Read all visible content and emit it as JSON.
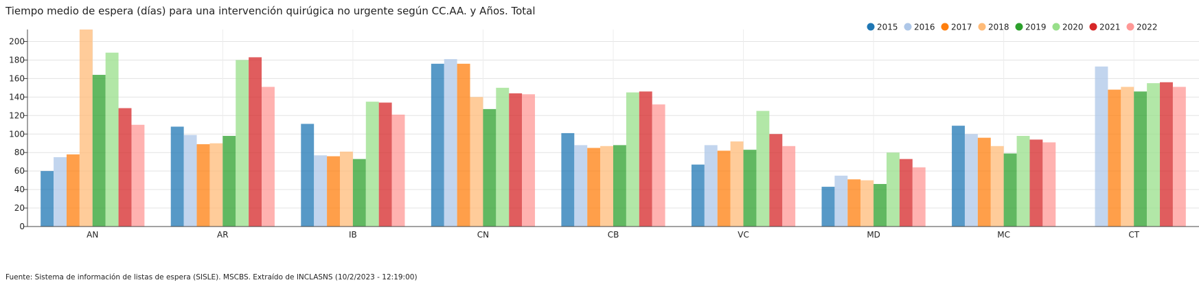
{
  "title": "Tiempo medio de espera (días) para una intervención quirúgica no urgente según CC.AA. y Años. Total",
  "source": "Fuente: Sistema de información de listas de espera (SISLE). MSCBS. Extraído de INCLASNS (10/2/2023 - 12:19:00)",
  "chart_data": {
    "type": "bar",
    "title": "Tiempo medio de espera (días) para una intervención quirúgica no urgente según CC.AA. y Años. Total",
    "xlabel": "",
    "ylabel": "",
    "ylim": [
      0,
      213
    ],
    "yticks": [
      0,
      20,
      40,
      60,
      80,
      100,
      120,
      140,
      160,
      180,
      200
    ],
    "grid": true,
    "legend_position": "top-right",
    "categories": [
      "AN",
      "AR",
      "IB",
      "CN",
      "CB",
      "VC",
      "MD",
      "MC",
      "CT"
    ],
    "series": [
      {
        "name": "2015",
        "color": "#1f77b4",
        "values": [
          60,
          108,
          111,
          176,
          101,
          67,
          43,
          109,
          null
        ]
      },
      {
        "name": "2016",
        "color": "#aec7e8",
        "values": [
          75,
          99,
          77,
          181,
          88,
          88,
          55,
          100,
          173
        ]
      },
      {
        "name": "2017",
        "color": "#ff7f0e",
        "values": [
          78,
          89,
          76,
          176,
          85,
          82,
          51,
          96,
          148
        ]
      },
      {
        "name": "2018",
        "color": "#ffbb78",
        "values": [
          213,
          90,
          81,
          140,
          87,
          92,
          50,
          87,
          151
        ]
      },
      {
        "name": "2019",
        "color": "#2ca02c",
        "values": [
          164,
          98,
          73,
          127,
          88,
          83,
          46,
          79,
          146
        ]
      },
      {
        "name": "2020",
        "color": "#98df8a",
        "values": [
          188,
          180,
          135,
          150,
          145,
          125,
          80,
          98,
          155
        ]
      },
      {
        "name": "2021",
        "color": "#d62728",
        "values": [
          128,
          183,
          134,
          144,
          146,
          100,
          73,
          94,
          156
        ]
      },
      {
        "name": "2022",
        "color": "#ff9896",
        "values": [
          110,
          151,
          121,
          143,
          132,
          87,
          64,
          91,
          151
        ]
      }
    ]
  }
}
